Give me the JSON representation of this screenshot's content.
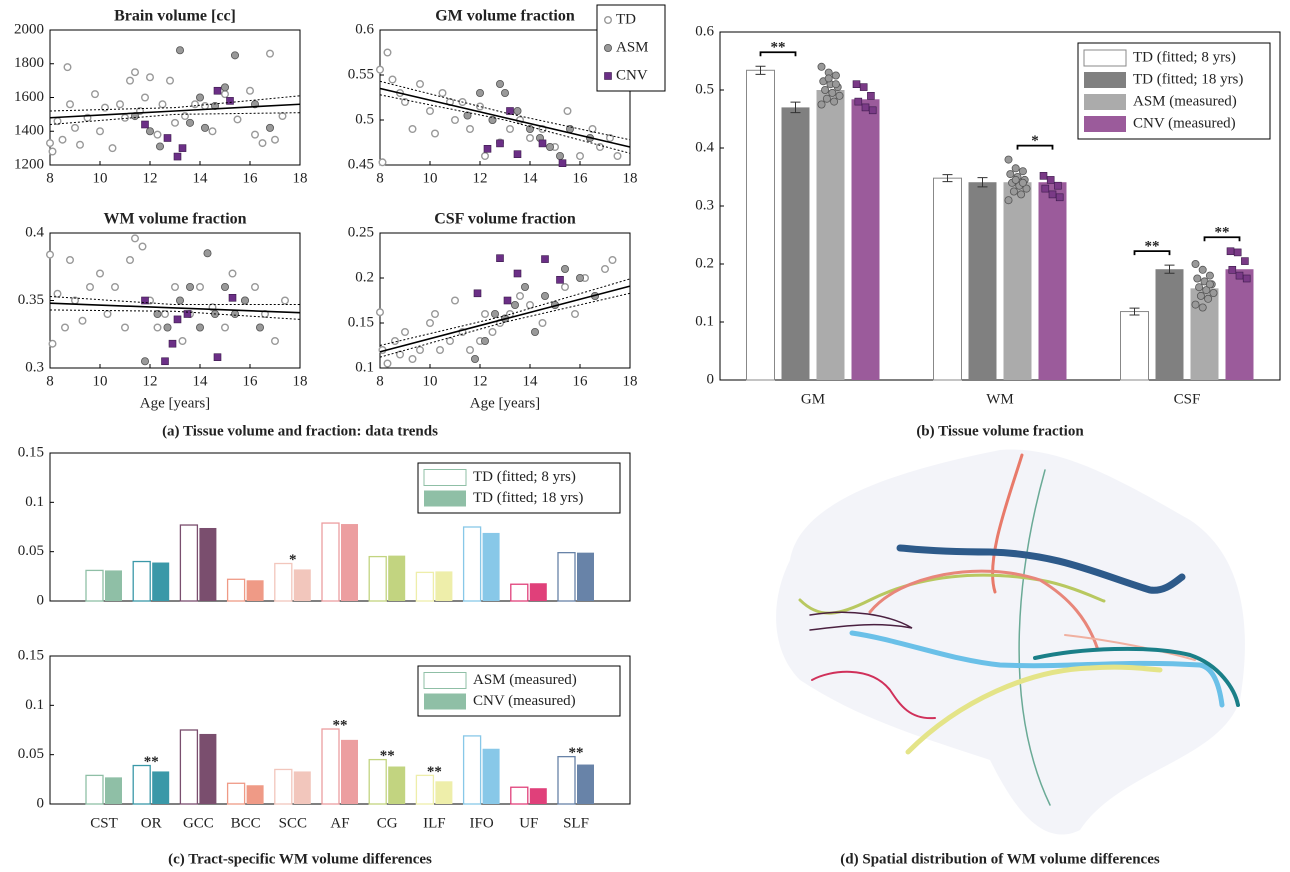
{
  "chart_data": [
    {
      "type": "scatter",
      "title": "Brain volume [cc]",
      "xlim": [
        8,
        18
      ],
      "xticks": [
        8,
        10,
        12,
        14,
        16,
        18
      ],
      "ylim": [
        1200,
        2000
      ],
      "yticks": [
        1200,
        1400,
        1600,
        1800,
        2000
      ],
      "series": [
        {
          "color": "#999999",
          "marker": "circle-open",
          "x": [
            8,
            8.1,
            8.3,
            8.5,
            8.7,
            8.8,
            9,
            9.2,
            9.5,
            9.8,
            10,
            10.2,
            10.5,
            10.8,
            11,
            11.2,
            11.4,
            11.6,
            11.8,
            12,
            12.3,
            12.5,
            12.8,
            13,
            13.4,
            13.8,
            14.2,
            14.5,
            15,
            15.5,
            16,
            16.2,
            16.5,
            16.8,
            17,
            17.3
          ],
          "values": [
            1330,
            1280,
            1460,
            1350,
            1780,
            1560,
            1420,
            1320,
            1480,
            1620,
            1400,
            1540,
            1300,
            1560,
            1480,
            1700,
            1750,
            1520,
            1600,
            1720,
            1380,
            1560,
            1700,
            1450,
            1490,
            1560,
            1550,
            1400,
            1620,
            1470,
            1640,
            1380,
            1330,
            1860,
            1350,
            1490
          ]
        },
        {
          "color": "#999999",
          "marker": "circle",
          "x": [
            11.4,
            12,
            12.4,
            13.2,
            13.6,
            14,
            14.2,
            14.6,
            15,
            15.4,
            16.2,
            16.8
          ],
          "values": [
            1490,
            1400,
            1310,
            1880,
            1450,
            1600,
            1420,
            1550,
            1660,
            1850,
            1560,
            1420
          ]
        },
        {
          "color": "#6b2f86",
          "marker": "square",
          "x": [
            11.8,
            12.7,
            13.1,
            13.3,
            14.7,
            15.2
          ],
          "values": [
            1440,
            1360,
            1250,
            1300,
            1640,
            1580
          ]
        }
      ],
      "fit": {
        "x": [
          8,
          13,
          18
        ],
        "values": [
          1480,
          1520,
          1560
        ],
        "lower": [
          1440,
          1500,
          1510
        ],
        "upper": [
          1520,
          1540,
          1610
        ]
      }
    },
    {
      "type": "scatter",
      "title": "GM volume fraction",
      "xlim": [
        8,
        18
      ],
      "xticks": [
        8,
        10,
        12,
        14,
        16,
        18
      ],
      "ylim": [
        0.45,
        0.6
      ],
      "yticks": [
        0.45,
        0.5,
        0.55,
        0.6
      ],
      "legend": "upper right",
      "series": [
        {
          "name": "TD",
          "color": "#999999",
          "marker": "circle-open",
          "x": [
            8,
            8.1,
            8.3,
            8.5,
            8.8,
            9,
            9.3,
            9.6,
            10,
            10.2,
            10.5,
            10.8,
            11,
            11.3,
            11.6,
            12,
            12.2,
            12.5,
            12.8,
            13.2,
            13.6,
            14,
            14.5,
            15,
            15.5,
            16,
            16.5,
            16.8,
            17.2,
            17.5
          ],
          "values": [
            0.556,
            0.453,
            0.575,
            0.545,
            0.53,
            0.52,
            0.49,
            0.54,
            0.51,
            0.485,
            0.53,
            0.52,
            0.5,
            0.52,
            0.49,
            0.515,
            0.46,
            0.5,
            0.475,
            0.49,
            0.5,
            0.48,
            0.49,
            0.47,
            0.51,
            0.46,
            0.49,
            0.47,
            0.48,
            0.46
          ]
        },
        {
          "name": "ASM",
          "color": "#999999",
          "marker": "circle",
          "x": [
            11.5,
            12,
            12.5,
            13,
            13.5,
            14,
            14.4,
            14.8,
            15.2,
            15.6,
            16.4,
            12.8
          ],
          "values": [
            0.505,
            0.53,
            0.5,
            0.53,
            0.51,
            0.49,
            0.48,
            0.47,
            0.46,
            0.49,
            0.48,
            0.54
          ]
        },
        {
          "name": "CNV",
          "color": "#6b2f86",
          "marker": "square",
          "x": [
            12.3,
            12.8,
            13.2,
            13.5,
            14.5,
            15.3
          ],
          "values": [
            0.468,
            0.474,
            0.51,
            0.462,
            0.474,
            0.452
          ]
        }
      ],
      "fit": {
        "x": [
          8,
          13,
          18
        ],
        "values": [
          0.535,
          0.5025,
          0.47
        ],
        "lower": [
          0.528,
          0.5,
          0.463
        ],
        "upper": [
          0.543,
          0.508,
          0.478
        ]
      }
    },
    {
      "type": "scatter",
      "title": "WM volume fraction",
      "xlabel": "Age [years]",
      "xlim": [
        8,
        18
      ],
      "xticks": [
        8,
        10,
        12,
        14,
        16,
        18
      ],
      "ylim": [
        0.3,
        0.4
      ],
      "yticks": [
        0.3,
        0.35,
        0.4
      ],
      "series": [
        {
          "color": "#999999",
          "marker": "circle-open",
          "x": [
            8,
            8.1,
            8.3,
            8.6,
            8.8,
            9,
            9.3,
            9.6,
            10,
            10.3,
            10.6,
            11,
            11.2,
            11.4,
            11.7,
            12,
            12.3,
            12.6,
            13,
            13.3,
            13.6,
            14,
            14.5,
            15,
            15.3,
            15.8,
            16.2,
            16.6,
            17,
            17.4
          ],
          "values": [
            0.384,
            0.318,
            0.355,
            0.33,
            0.38,
            0.35,
            0.335,
            0.36,
            0.37,
            0.34,
            0.36,
            0.33,
            0.38,
            0.396,
            0.39,
            0.35,
            0.33,
            0.34,
            0.36,
            0.32,
            0.34,
            0.36,
            0.345,
            0.33,
            0.37,
            0.35,
            0.36,
            0.34,
            0.32,
            0.35
          ]
        },
        {
          "color": "#999999",
          "marker": "circle",
          "x": [
            11.8,
            12.3,
            12.7,
            13.2,
            13.6,
            14,
            14.3,
            14.6,
            15,
            15.4,
            15.8,
            16.4
          ],
          "values": [
            0.305,
            0.34,
            0.33,
            0.35,
            0.36,
            0.33,
            0.385,
            0.34,
            0.36,
            0.34,
            0.35,
            0.33
          ]
        },
        {
          "color": "#6b2f86",
          "marker": "square",
          "x": [
            11.8,
            12.6,
            12.9,
            13.1,
            13.5,
            14.7,
            15.3
          ],
          "values": [
            0.35,
            0.305,
            0.318,
            0.336,
            0.34,
            0.308,
            0.352
          ]
        }
      ],
      "fit": {
        "x": [
          8,
          13,
          18
        ],
        "values": [
          0.348,
          0.3445,
          0.341
        ],
        "lower": [
          0.343,
          0.342,
          0.336
        ],
        "upper": [
          0.353,
          0.347,
          0.347
        ]
      }
    },
    {
      "type": "scatter",
      "title": "CSF volume fraction",
      "xlabel": "Age [years]",
      "xlim": [
        8,
        18
      ],
      "xticks": [
        8,
        10,
        12,
        14,
        16,
        18
      ],
      "ylim": [
        0.1,
        0.25
      ],
      "yticks": [
        0.1,
        0.15,
        0.2,
        0.25
      ],
      "series": [
        {
          "color": "#999999",
          "marker": "circle-open",
          "x": [
            8,
            8.1,
            8.3,
            8.6,
            8.8,
            9,
            9.3,
            9.6,
            10,
            10.2,
            10.4,
            10.8,
            11,
            11.3,
            11.6,
            12,
            12.2,
            12.5,
            12.8,
            13.2,
            13.6,
            14,
            14.5,
            15,
            15.4,
            15.8,
            16.2,
            16.6,
            17,
            17.3
          ],
          "values": [
            0.162,
            0.12,
            0.105,
            0.13,
            0.115,
            0.14,
            0.11,
            0.12,
            0.15,
            0.16,
            0.12,
            0.13,
            0.175,
            0.14,
            0.12,
            0.13,
            0.16,
            0.14,
            0.15,
            0.16,
            0.18,
            0.17,
            0.15,
            0.17,
            0.19,
            0.16,
            0.2,
            0.18,
            0.21,
            0.22
          ]
        },
        {
          "color": "#999999",
          "marker": "circle",
          "x": [
            11.8,
            12.2,
            12.6,
            13,
            13.4,
            13.8,
            14.2,
            14.6,
            15,
            15.4,
            16,
            16.6
          ],
          "values": [
            0.11,
            0.13,
            0.16,
            0.155,
            0.17,
            0.19,
            0.14,
            0.18,
            0.17,
            0.21,
            0.2,
            0.18
          ]
        },
        {
          "color": "#6b2f86",
          "marker": "square",
          "x": [
            11.9,
            12.8,
            13.1,
            13.5,
            14.6,
            15.2
          ],
          "values": [
            0.183,
            0.222,
            0.175,
            0.205,
            0.221,
            0.198
          ]
        }
      ],
      "fit": {
        "x": [
          8,
          13,
          18
        ],
        "values": [
          0.118,
          0.1545,
          0.191
        ],
        "lower": [
          0.112,
          0.151,
          0.183
        ],
        "upper": [
          0.125,
          0.158,
          0.199
        ]
      }
    },
    {
      "type": "bar",
      "categories": [
        "GM",
        "WM",
        "CSF"
      ],
      "ylim": [
        0,
        0.6
      ],
      "yticks": [
        0,
        0.1,
        0.2,
        0.3,
        0.4,
        0.5,
        0.6
      ],
      "legend": "upper right",
      "series": [
        {
          "name": "TD (fitted; 8 yrs)",
          "color": "#ffffff",
          "edge": "#888888",
          "values": [
            0.534,
            0.348,
            0.118
          ],
          "errors": [
            0.007,
            0.006,
            0.006
          ]
        },
        {
          "name": "TD (fitted; 18 yrs)",
          "color": "#808080",
          "values": [
            0.47,
            0.341,
            0.191
          ],
          "errors": [
            0.009,
            0.008,
            0.007
          ]
        },
        {
          "name": "ASM (measured)",
          "color": "#ababab",
          "values": [
            0.5,
            0.341,
            0.158
          ],
          "point_color": "#999999",
          "marker": "circle",
          "points": [
            [
              0.54,
              0.53,
              0.525,
              0.515,
              0.51,
              0.505,
              0.5,
              0.495,
              0.49,
              0.485,
              0.48,
              0.475,
              0.52,
              0.51
            ],
            [
              0.38,
              0.365,
              0.36,
              0.355,
              0.35,
              0.345,
              0.34,
              0.335,
              0.33,
              0.325,
              0.32,
              0.31,
              0.345,
              0.34
            ],
            [
              0.2,
              0.19,
              0.18,
              0.175,
              0.17,
              0.165,
              0.16,
              0.155,
              0.15,
              0.145,
              0.14,
              0.13,
              0.125,
              0.165
            ]
          ]
        },
        {
          "name": "CNV (measured)",
          "color": "#9b5b9b",
          "values": [
            0.484,
            0.341,
            0.191
          ],
          "point_color": "#7a3a86",
          "marker": "square",
          "points": [
            [
              0.51,
              0.505,
              0.49,
              0.48,
              0.47,
              0.465
            ],
            [
              0.352,
              0.345,
              0.335,
              0.33,
              0.32,
              0.315
            ],
            [
              0.222,
              0.22,
              0.205,
              0.19,
              0.18,
              0.175
            ]
          ]
        }
      ],
      "significance": [
        {
          "category": "GM",
          "series": [
            "TD (fitted; 8 yrs)",
            "TD (fitted; 18 yrs)"
          ],
          "label": "**"
        },
        {
          "category": "WM",
          "series": [
            "ASM (measured)",
            "CNV (measured)"
          ],
          "label": "*"
        },
        {
          "category": "CSF",
          "series": [
            "TD (fitted; 8 yrs)",
            "TD (fitted; 18 yrs)"
          ],
          "label": "**"
        },
        {
          "category": "CSF",
          "series": [
            "ASM (measured)",
            "CNV (measured)"
          ],
          "label": "**"
        }
      ]
    },
    {
      "type": "bar",
      "categories": [
        null,
        null,
        null,
        null,
        null,
        null,
        null,
        null,
        null,
        null,
        null
      ],
      "ylim": [
        0,
        0.15
      ],
      "yticks": [
        0,
        0.05,
        0.1,
        0.15
      ],
      "legend": "upper right",
      "category_colors": [
        "#8fbfa6",
        "#3a98a8",
        "#7a4e6e",
        "#ef9a86",
        "#f2c6bc",
        "#ec9ea0",
        "#c2d480",
        "#eeeeaa",
        "#88c8e8",
        "#e0407a",
        "#6883a8"
      ],
      "series": [
        {
          "name": "TD (fitted; 8 yrs)",
          "style": "outline",
          "values": [
            0.031,
            0.04,
            0.077,
            0.022,
            0.038,
            0.079,
            0.045,
            0.029,
            0.075,
            0.017,
            0.049
          ]
        },
        {
          "name": "TD (fitted; 18 yrs)",
          "style": "filled",
          "values": [
            0.031,
            0.039,
            0.074,
            0.021,
            0.032,
            0.078,
            0.046,
            0.03,
            0.069,
            0.018,
            0.049
          ]
        }
      ],
      "significance_labels": [
        null,
        null,
        null,
        null,
        "*",
        null,
        null,
        null,
        null,
        null,
        null
      ]
    },
    {
      "type": "bar",
      "categories": [
        "CST",
        "OR",
        "GCC",
        "BCC",
        "SCC",
        "AF",
        "CG",
        "ILF",
        "IFO",
        "UF",
        "SLF"
      ],
      "ylim": [
        0,
        0.15
      ],
      "yticks": [
        0,
        0.05,
        0.1,
        0.15
      ],
      "legend": "upper right",
      "category_colors": [
        "#8fbfa6",
        "#3a98a8",
        "#7a4e6e",
        "#ef9a86",
        "#f2c6bc",
        "#ec9ea0",
        "#c2d480",
        "#eeeeaa",
        "#88c8e8",
        "#e0407a",
        "#6883a8"
      ],
      "series": [
        {
          "name": "ASM (measured)",
          "style": "outline",
          "values": [
            0.029,
            0.039,
            0.075,
            0.021,
            0.035,
            0.076,
            0.045,
            0.029,
            0.069,
            0.017,
            0.048
          ]
        },
        {
          "name": "CNV (measured)",
          "style": "filled",
          "values": [
            0.027,
            0.033,
            0.071,
            0.019,
            0.033,
            0.065,
            0.038,
            0.023,
            0.056,
            0.016,
            0.04
          ]
        }
      ],
      "significance_labels": [
        null,
        "**",
        null,
        null,
        null,
        "**",
        "**",
        "**",
        null,
        null,
        "**"
      ]
    }
  ],
  "captions": [
    "(a) Tissue volume and fraction: data trends",
    "(b) Tissue volume fraction",
    "(c) Tract-specific WM volume differences",
    "(d) Spatial distribution of WM volume differences"
  ]
}
